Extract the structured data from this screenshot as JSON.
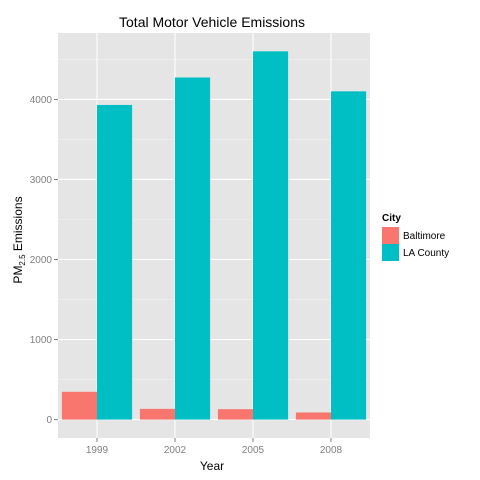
{
  "chart_data": {
    "type": "bar",
    "title": "Total Motor Vehicle Emissions",
    "xlabel": "Year",
    "ylabel": {
      "main": "PM",
      "sub": "2.5",
      "rest": " Emissions"
    },
    "categories": [
      "1999",
      "2002",
      "2005",
      "2008"
    ],
    "series": [
      {
        "name": "Baltimore",
        "color": "#F8766D",
        "values": [
          347,
          134,
          130,
          89
        ]
      },
      {
        "name": "LA County",
        "color": "#00BFC4",
        "values": [
          3931,
          4274,
          4601,
          4101
        ]
      }
    ],
    "yticks": [
      0,
      1000,
      2000,
      3000,
      4000
    ],
    "ylim": [
      -230,
      4830
    ],
    "grid": true,
    "legend": {
      "title": "City",
      "position": "right"
    }
  }
}
